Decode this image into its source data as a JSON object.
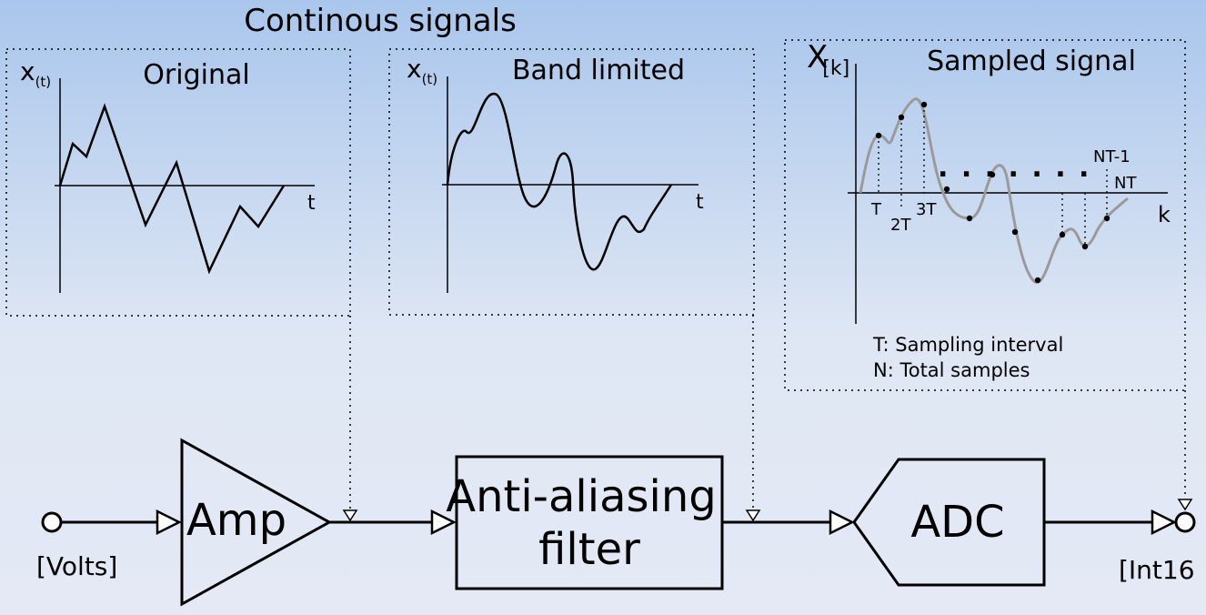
{
  "header": {
    "title": "Continous signals"
  },
  "panels": {
    "original": {
      "title": "Original",
      "y_label": "x",
      "y_sub": "(t)",
      "x_label": "t"
    },
    "band_limited": {
      "title": "Band limited",
      "y_label": "x",
      "y_sub": "(t)",
      "x_label": "t"
    },
    "sampled": {
      "title": "Sampled signal",
      "y_label": "X",
      "y_sub": "[k]",
      "x_label": "k",
      "ticks": [
        "T",
        "2T",
        "3T",
        "NT-1",
        "NT"
      ],
      "ellipsis": ". . . . . . .",
      "legend": [
        "T: Sampling interval",
        "N: Total samples"
      ]
    }
  },
  "blocks": {
    "amp": "Amp",
    "filter_line1": "Anti-aliasing",
    "filter_line2": "filter",
    "adc": "ADC"
  },
  "io": {
    "input": "[Volts]",
    "output": "[Int16"
  },
  "colors": {
    "background_top": "#a9c6ec",
    "background_bottom": "#e4e9f5",
    "stroke": "#000000",
    "sampled_curve": "#9a9a9a"
  }
}
